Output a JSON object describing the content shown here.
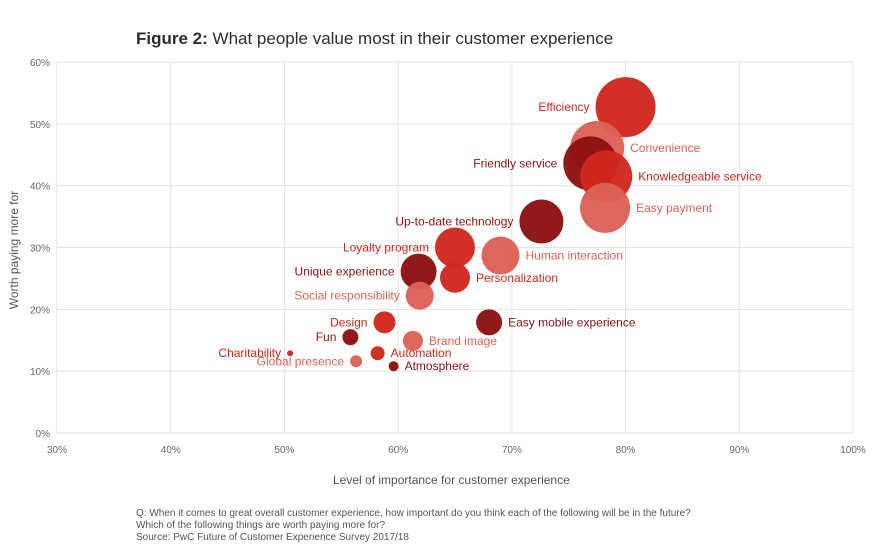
{
  "title": {
    "prefix": "Figure 2:",
    "text": " What people value most in their customer experience"
  },
  "footnote": {
    "line1": "Q: When it comes to great overall customer experience, how important do you think each of the following will be in the future?",
    "line2": "Which of the following things are worth paying more for?",
    "line3": "Source: PwC Future of Customer Experience Survey 2017/18"
  },
  "colors": {
    "dark": "#8b1111",
    "mid": "#d0271d",
    "light": "#dc6156",
    "grid": "#e3e3e3"
  },
  "chart_data": {
    "type": "scatter",
    "xlabel": "Level of importance for customer experience",
    "ylabel": "Worth paying more for",
    "xlim": [
      30,
      100
    ],
    "ylim": [
      0,
      60
    ],
    "x_ticks": [
      "30%",
      "40%",
      "50%",
      "60%",
      "70%",
      "80%",
      "90%",
      "100%"
    ],
    "y_ticks": [
      "0%",
      "10%",
      "20%",
      "30%",
      "40%",
      "50%",
      "60%"
    ],
    "grid": true,
    "points": [
      {
        "label": "Efficiency",
        "x": 80,
        "y": 52.7,
        "size": 30,
        "shade": "mid",
        "label_side": "left"
      },
      {
        "label": "Convenience",
        "x": 77.5,
        "y": 46.1,
        "size": 27,
        "shade": "light",
        "label_side": "right"
      },
      {
        "label": "Knowledgeable service",
        "x": 78.3,
        "y": 41.5,
        "size": 26,
        "shade": "mid",
        "label_side": "right"
      },
      {
        "label": "Friendly service",
        "x": 76.9,
        "y": 43.6,
        "size": 27,
        "shade": "dark",
        "label_side": "left"
      },
      {
        "label": "Easy payment",
        "x": 78.2,
        "y": 36.4,
        "size": 25,
        "shade": "light",
        "label_side": "right"
      },
      {
        "label": "Up-to-date technology",
        "x": 72.6,
        "y": 34.2,
        "size": 22,
        "shade": "dark",
        "label_side": "left"
      },
      {
        "label": "Human interaction",
        "x": 69.0,
        "y": 28.7,
        "size": 19,
        "shade": "light",
        "label_side": "right"
      },
      {
        "label": "Loyalty program",
        "x": 65.0,
        "y": 30.0,
        "size": 20,
        "shade": "mid",
        "label_side": "left"
      },
      {
        "label": "Personalization",
        "x": 65.0,
        "y": 25.1,
        "size": 15,
        "shade": "mid",
        "label_side": "right"
      },
      {
        "label": "Unique experience",
        "x": 61.8,
        "y": 26.1,
        "size": 18,
        "shade": "dark",
        "label_side": "left"
      },
      {
        "label": "Social responsibility",
        "x": 61.9,
        "y": 22.2,
        "size": 14,
        "shade": "light",
        "label_side": "left"
      },
      {
        "label": "Design",
        "x": 58.8,
        "y": 17.9,
        "size": 11,
        "shade": "mid",
        "label_side": "left"
      },
      {
        "label": "Easy mobile experience",
        "x": 68.0,
        "y": 17.9,
        "size": 13,
        "shade": "dark",
        "label_side": "right"
      },
      {
        "label": "Fun",
        "x": 55.8,
        "y": 15.5,
        "size": 8,
        "shade": "dark",
        "label_side": "left"
      },
      {
        "label": "Brand image",
        "x": 61.3,
        "y": 14.9,
        "size": 10,
        "shade": "light",
        "label_side": "right"
      },
      {
        "label": "Automation",
        "x": 58.2,
        "y": 12.9,
        "size": 7,
        "shade": "mid",
        "label_side": "right"
      },
      {
        "label": "Charitability",
        "x": 50.5,
        "y": 12.9,
        "size": 3,
        "shade": "mid",
        "label_side": "left"
      },
      {
        "label": "Global presence",
        "x": 56.3,
        "y": 11.6,
        "size": 6,
        "shade": "light",
        "label_side": "left"
      },
      {
        "label": "Atmosphere",
        "x": 59.6,
        "y": 10.8,
        "size": 5,
        "shade": "dark",
        "label_side": "right"
      }
    ]
  }
}
